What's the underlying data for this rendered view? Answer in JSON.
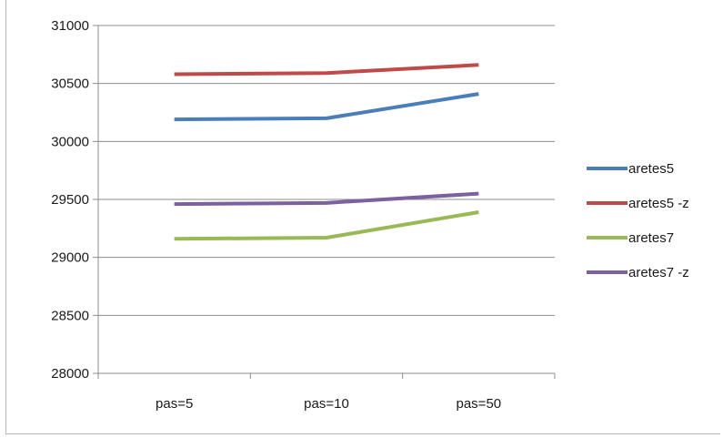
{
  "chart_data": {
    "type": "line",
    "categories": [
      "pas=5",
      "pas=10",
      "pas=50"
    ],
    "series": [
      {
        "name": "aretes5",
        "color": "#4a7ebb",
        "values": [
          30190,
          30200,
          30410
        ]
      },
      {
        "name": "aretes5 -z",
        "color": "#be4b48",
        "values": [
          30580,
          30590,
          30660
        ]
      },
      {
        "name": "aretes7",
        "color": "#98b954",
        "values": [
          29160,
          29170,
          29390
        ]
      },
      {
        "name": "aretes7 -z",
        "color": "#7d60a0",
        "values": [
          29460,
          29470,
          29550
        ]
      }
    ],
    "y_ticks": [
      "31000",
      "30500",
      "30000",
      "29500",
      "29000",
      "28500",
      "28000"
    ],
    "ylim": [
      28000,
      31000
    ],
    "grid": true,
    "legend_position": "right",
    "title": "",
    "xlabel": "",
    "ylabel": ""
  }
}
